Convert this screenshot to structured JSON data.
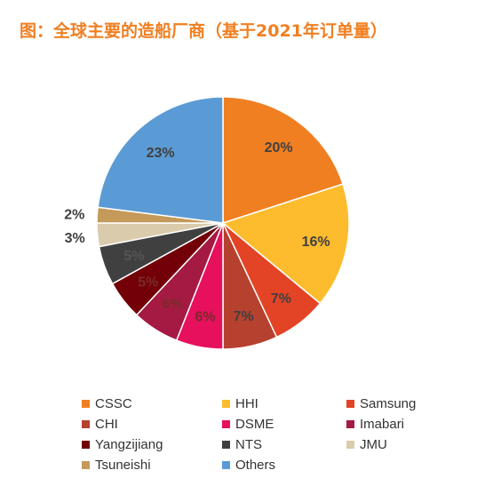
{
  "title": "图：全球主要的造船厂商（基于2021年订单量）",
  "colors": {
    "title": "#f07f22"
  },
  "chart_data": {
    "type": "pie",
    "unit": "%",
    "start_angle_deg": 0,
    "direction": "clockwise",
    "slices": [
      {
        "label": "CSSC",
        "value": 20,
        "value_label": "20%",
        "color": "#f07f22",
        "label_color": "#404040"
      },
      {
        "label": "HHI",
        "value": 16,
        "value_label": "16%",
        "color": "#fdbc2e",
        "label_color": "#404040"
      },
      {
        "label": "Samsung",
        "value": 7,
        "value_label": "7%",
        "color": "#e34425",
        "label_color": "#404040"
      },
      {
        "label": "CHI",
        "value": 7,
        "value_label": "7%",
        "color": "#b6412e",
        "label_color": "#404040"
      },
      {
        "label": "DSME",
        "value": 6,
        "value_label": "6%",
        "color": "#e6105d",
        "label_color": "#7a2a2a"
      },
      {
        "label": "Imabari",
        "value": 6,
        "value_label": "6%",
        "color": "#a51a42",
        "label_color": "#7a2a2a"
      },
      {
        "label": "Yangzijiang",
        "value": 5,
        "value_label": "5%",
        "color": "#730009",
        "label_color": "#7a2a2a"
      },
      {
        "label": "NTS",
        "value": 5,
        "value_label": "5%",
        "color": "#404040",
        "label_color": "#555555"
      },
      {
        "label": "JMU",
        "value": 3,
        "value_label": "3%",
        "color": "#dacbac",
        "label_color": "#404040"
      },
      {
        "label": "Tsuneishi",
        "value": 2,
        "value_label": "2%",
        "color": "#c49a5a",
        "label_color": "#404040"
      },
      {
        "label": "Others",
        "value": 23,
        "value_label": "23%",
        "color": "#5b9bd5",
        "label_color": "#404040"
      }
    ],
    "legend_placement": "bottom"
  }
}
